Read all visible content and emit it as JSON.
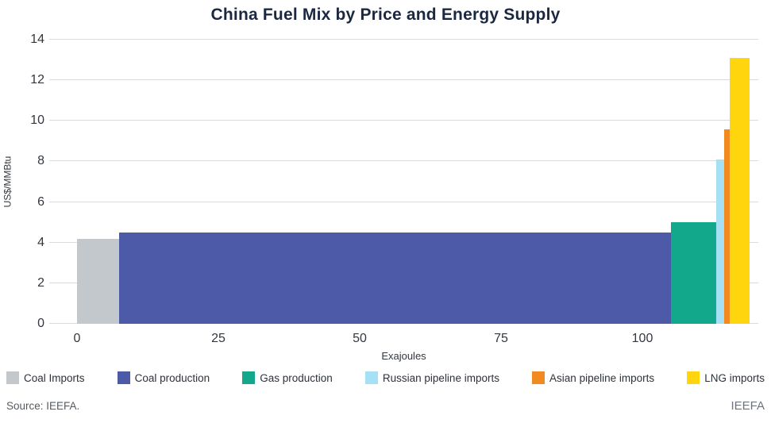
{
  "chart_data": {
    "type": "bar",
    "variant": "variable-width-supply-cost-curve",
    "title": "China Fuel Mix by Price and Energy Supply",
    "xlabel": "Exajoules",
    "ylabel": "US$/MMBtu",
    "ylim": [
      0,
      14
    ],
    "y_ticks": [
      0,
      2,
      4,
      6,
      8,
      10,
      12,
      14
    ],
    "x_ticks": [
      0,
      25,
      50,
      75,
      100
    ],
    "grid": "horizontal",
    "legend_position": "bottom",
    "series": [
      {
        "name": "Coal Imports",
        "color": "#c3c8cd",
        "width_ej": 7.5,
        "price_usd_mmbtu": 4.2
      },
      {
        "name": "Coal production",
        "color": "#4c5aa7",
        "width_ej": 97.5,
        "price_usd_mmbtu": 4.5
      },
      {
        "name": "Gas production",
        "color": "#12a88b",
        "width_ej": 8.0,
        "price_usd_mmbtu": 5.0
      },
      {
        "name": "Russian pipeline imports",
        "color": "#a6e0f4",
        "width_ej": 1.5,
        "price_usd_mmbtu": 8.1
      },
      {
        "name": "Asian pipeline imports",
        "color": "#f18b20",
        "width_ej": 1.0,
        "price_usd_mmbtu": 9.6
      },
      {
        "name": "LNG imports",
        "color": "#ffd60e",
        "width_ej": 3.5,
        "price_usd_mmbtu": 13.1
      }
    ]
  },
  "footer": {
    "source": "Source: IEEFA.",
    "brand": "IEEFA"
  }
}
